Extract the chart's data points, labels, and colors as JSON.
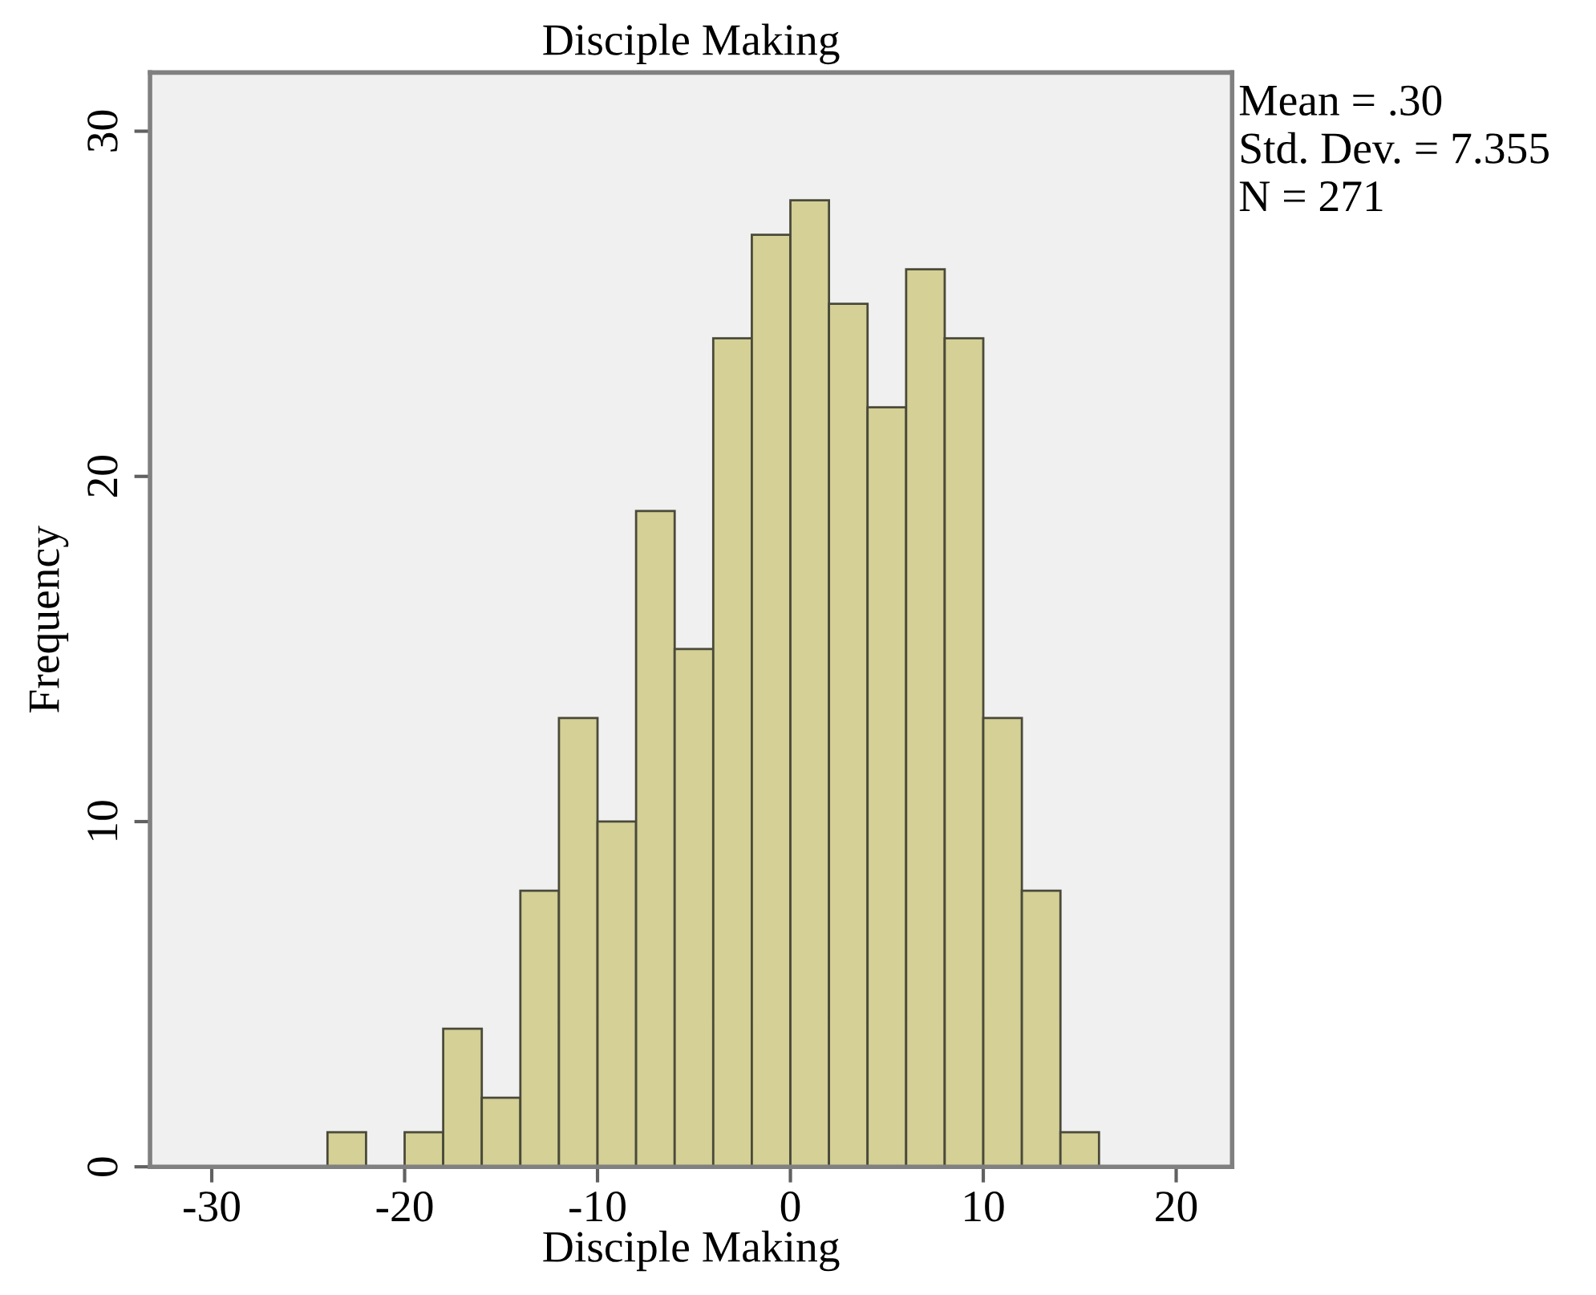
{
  "chart_data": {
    "type": "histogram",
    "title": "Disciple Making",
    "xlabel": "Disciple Making",
    "ylabel": "Frequency",
    "bins": [
      -24,
      -22,
      -20,
      -18,
      -16,
      -14,
      -12,
      -10,
      -8,
      -6,
      -4,
      -2,
      0,
      2,
      4,
      6,
      8,
      10,
      12,
      14,
      16
    ],
    "values": [
      1,
      0,
      1,
      4,
      2,
      8,
      13,
      10,
      19,
      15,
      24,
      27,
      28,
      25,
      22,
      26,
      24,
      13,
      8,
      1
    ],
    "color": "#d4d096",
    "xlim": [
      -33.2,
      22.9
    ],
    "ylim": [
      0,
      31.7
    ],
    "xticks": [
      -30,
      -20,
      -10,
      0,
      10,
      20
    ],
    "yticks": [
      0,
      10,
      20,
      30
    ],
    "grid": false,
    "annotations": [
      "Mean = .30",
      "Std. Dev. = 7.355",
      "N = 271"
    ]
  }
}
